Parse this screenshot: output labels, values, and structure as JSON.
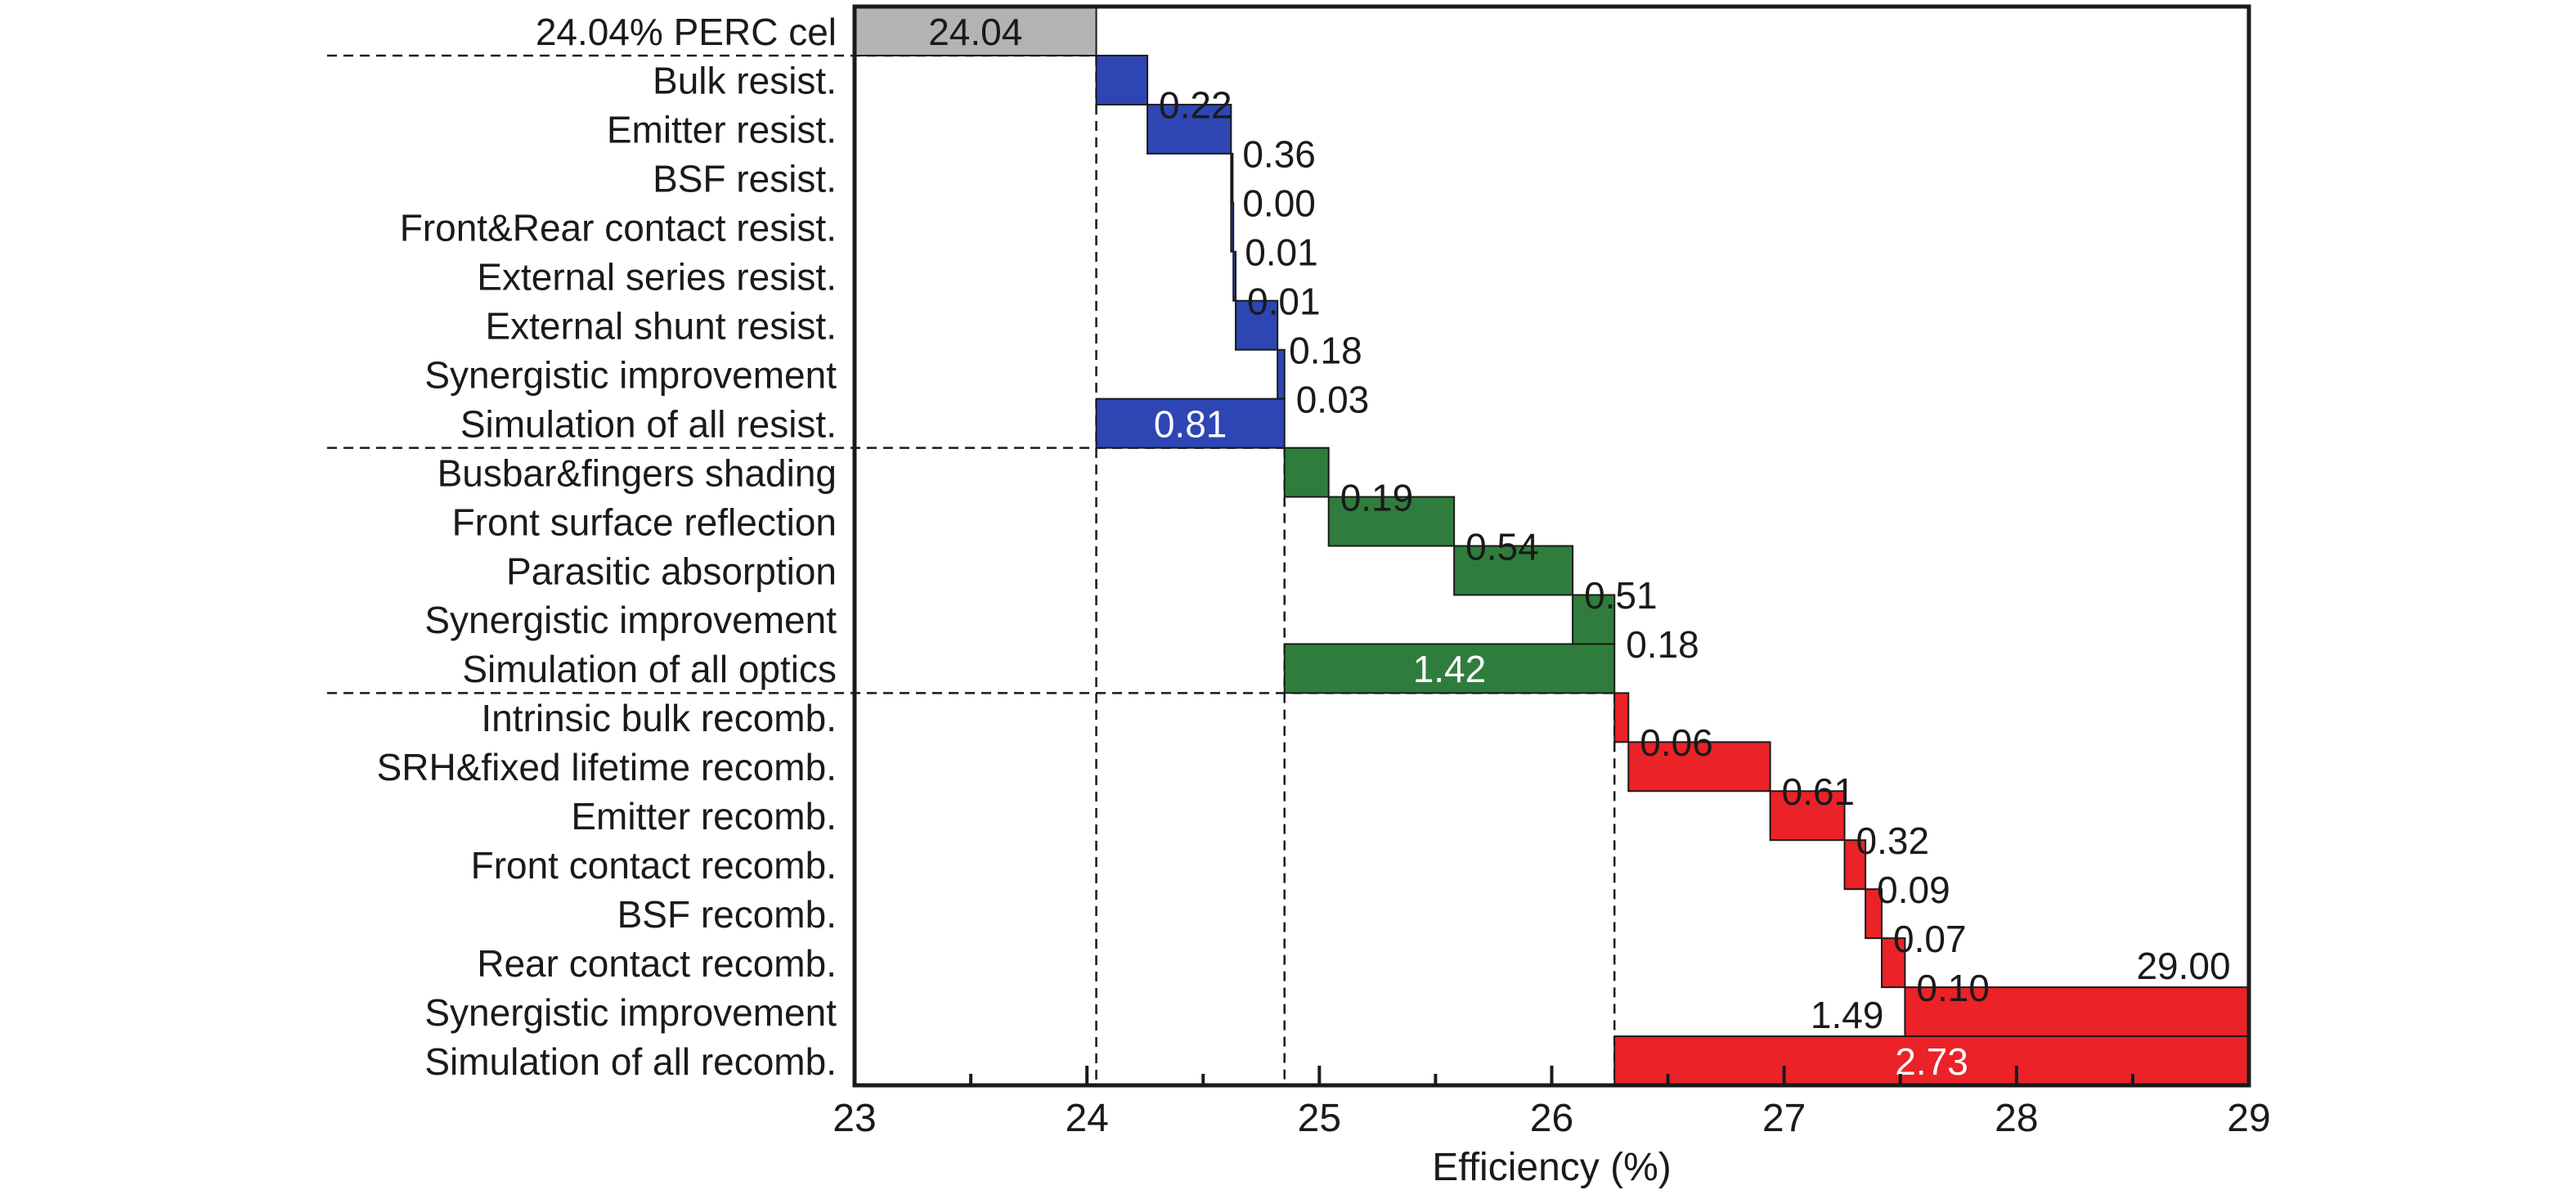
{
  "chart_data": {
    "type": "bar",
    "orientation": "horizontal-waterfall",
    "xlabel": "Efficiency (%)",
    "xlim": [
      23,
      29
    ],
    "xticks": [
      "23",
      "24",
      "25",
      "26",
      "27",
      "28",
      "29"
    ],
    "grid": false,
    "legend": "none",
    "colors": {
      "baseline": "#b3b3b3",
      "resistance": "#2e46b4",
      "optics": "#2f7d3d",
      "recombination": "#eb2227"
    },
    "bars": [
      {
        "category": "24.04% PERC cel",
        "start": 23.0,
        "end": 24.04,
        "label": "24.04",
        "group": "baseline"
      },
      {
        "category": "Bulk resist.",
        "start": 24.04,
        "end": 24.26,
        "label": "0.22",
        "group": "resistance"
      },
      {
        "category": "Emitter resist.",
        "start": 24.26,
        "end": 24.62,
        "label": "0.36",
        "group": "resistance"
      },
      {
        "category": "BSF resist.",
        "start": 24.62,
        "end": 24.62,
        "label": "0.00",
        "group": "resistance"
      },
      {
        "category": "Front&Rear contact resist.",
        "start": 24.62,
        "end": 24.63,
        "label": "0.01",
        "group": "resistance"
      },
      {
        "category": "External series resist.",
        "start": 24.63,
        "end": 24.64,
        "label": "0.01",
        "group": "resistance"
      },
      {
        "category": "External shunt resist.",
        "start": 24.64,
        "end": 24.82,
        "label": "0.18",
        "group": "resistance"
      },
      {
        "category": "Synergistic improvement",
        "start": 24.82,
        "end": 24.85,
        "label": "0.03",
        "group": "resistance"
      },
      {
        "category": "Simulation of all resist.",
        "start": 24.04,
        "end": 24.85,
        "label": "0.81",
        "group": "resistance"
      },
      {
        "category": "Busbar&fingers shading",
        "start": 24.85,
        "end": 25.04,
        "label": "0.19",
        "group": "optics"
      },
      {
        "category": "Front surface reflection",
        "start": 25.04,
        "end": 25.58,
        "label": "0.54",
        "group": "optics"
      },
      {
        "category": "Parasitic absorption",
        "start": 25.58,
        "end": 26.09,
        "label": "0.51",
        "group": "optics"
      },
      {
        "category": "Synergistic improvement",
        "start": 26.09,
        "end": 26.27,
        "label": "0.18",
        "group": "optics"
      },
      {
        "category": "Simulation of all optics",
        "start": 24.85,
        "end": 26.27,
        "label": "1.42",
        "group": "optics"
      },
      {
        "category": "Intrinsic bulk recomb.",
        "start": 26.27,
        "end": 26.33,
        "label": "0.06",
        "group": "recombination"
      },
      {
        "category": "SRH&fixed lifetime recomb.",
        "start": 26.33,
        "end": 26.94,
        "label": "0.61",
        "group": "recombination"
      },
      {
        "category": "Emitter recomb.",
        "start": 26.94,
        "end": 27.26,
        "label": "0.32",
        "group": "recombination"
      },
      {
        "category": "Front contact recomb.",
        "start": 27.26,
        "end": 27.35,
        "label": "0.09",
        "group": "recombination"
      },
      {
        "category": "BSF recomb.",
        "start": 27.35,
        "end": 27.42,
        "label": "0.07",
        "group": "recombination"
      },
      {
        "category": "Rear contact recomb.",
        "start": 27.42,
        "end": 27.52,
        "label": "0.10",
        "group": "recombination"
      },
      {
        "category": "Synergistic improvement",
        "start": 27.52,
        "end": 29.0,
        "label": "1.49",
        "group": "recombination"
      },
      {
        "category": "Simulation of all recomb.",
        "start": 26.27,
        "end": 29.0,
        "label": "2.73",
        "group": "recombination"
      }
    ],
    "annotations": [
      "29.00"
    ]
  }
}
